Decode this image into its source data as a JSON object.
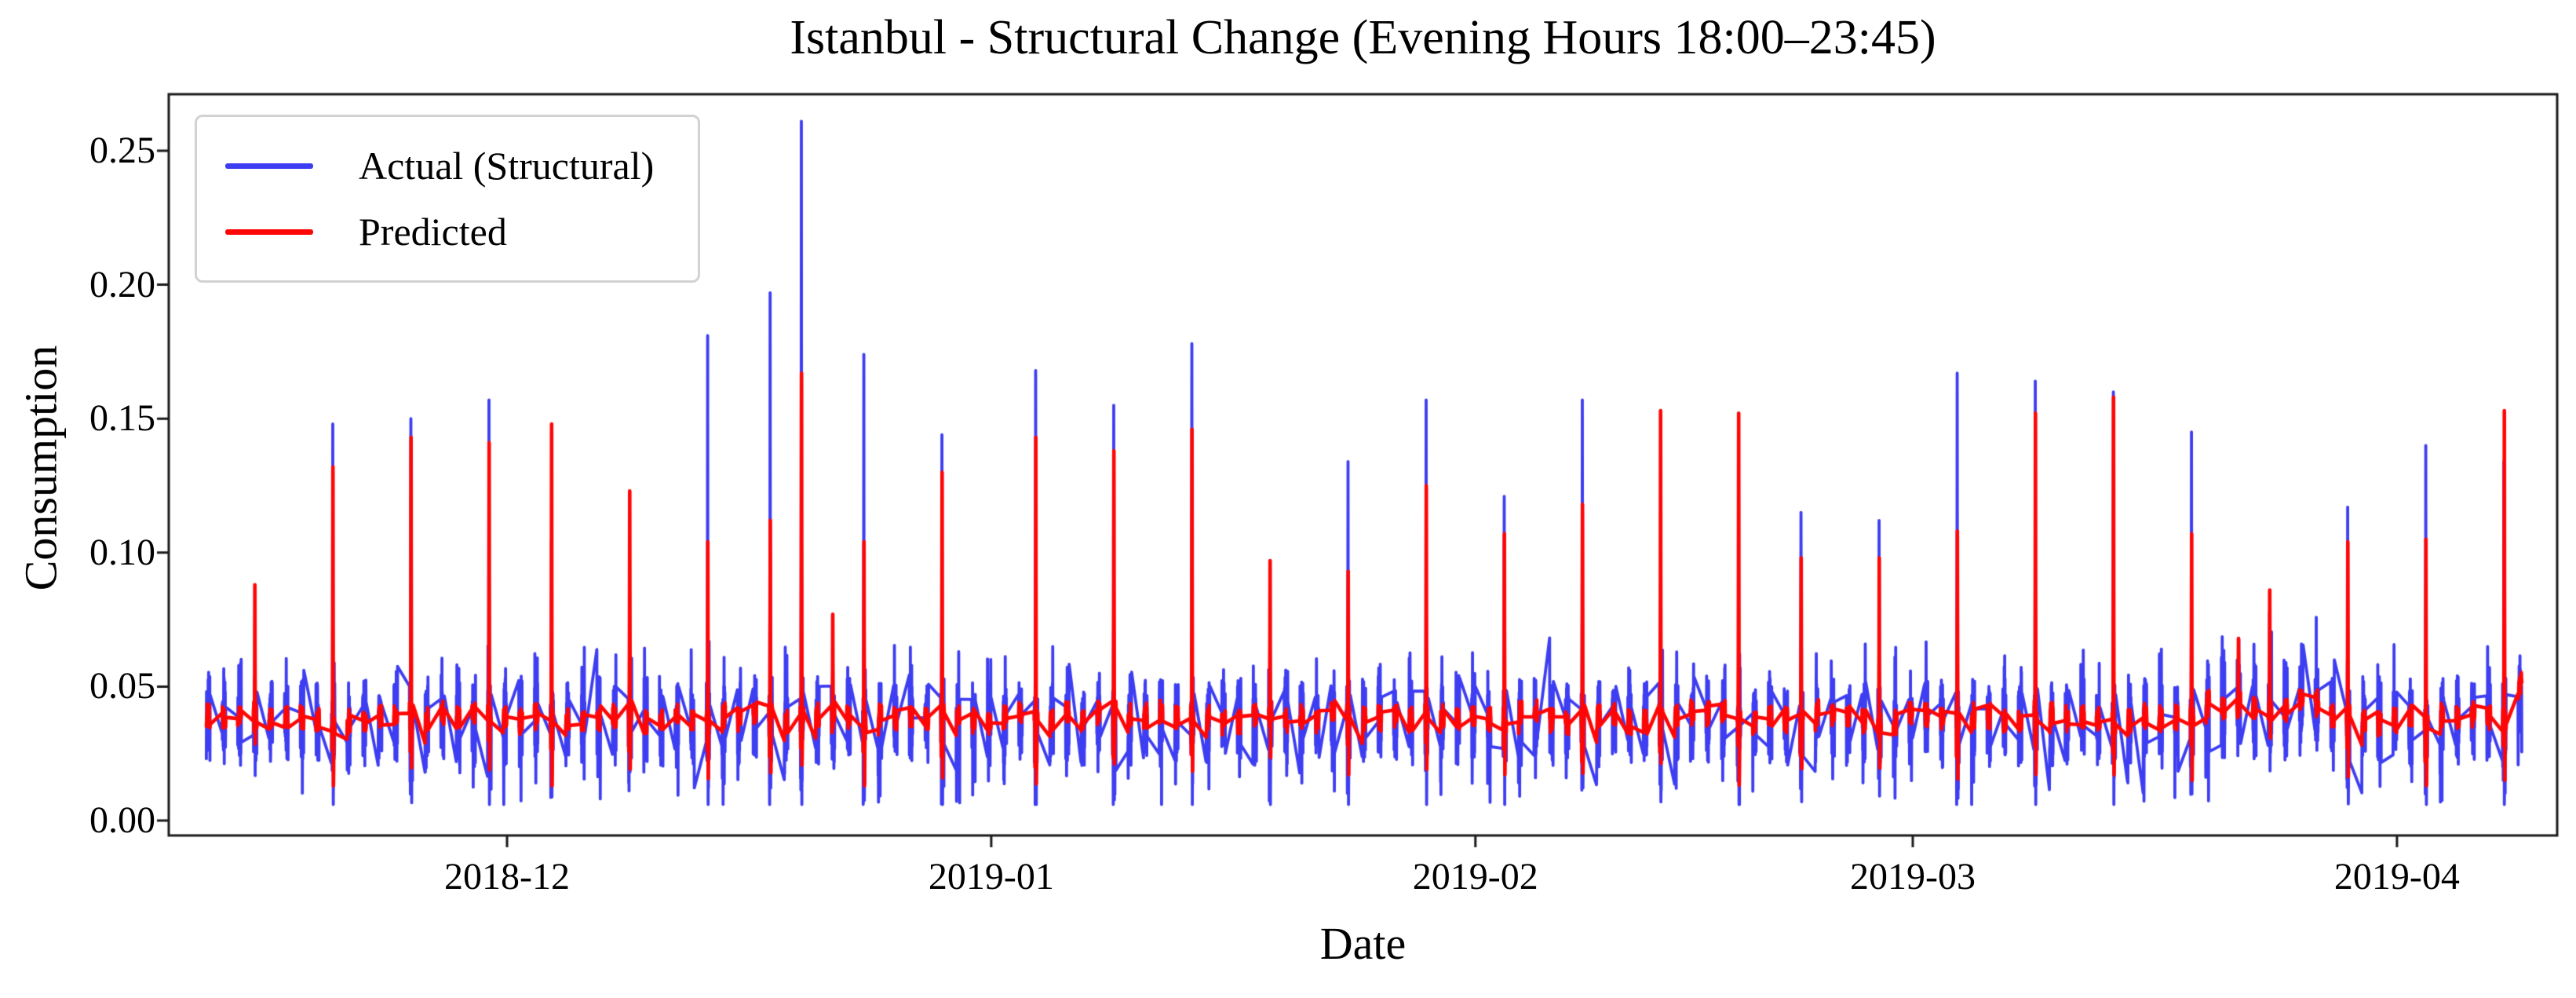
{
  "figure": {
    "title": "Istanbul - Structural Change (Evening Hours 18:00–23:45)",
    "xlabel": "Date",
    "ylabel": "Consumption",
    "background_color": "#ffffff",
    "spine_color": "#1a1a1a",
    "text_color": "#000000"
  },
  "legend": {
    "position": "upper left",
    "border_color": "#d2d2d2",
    "items": [
      {
        "label": "Actual (Structural)",
        "color": "#3d3df2"
      },
      {
        "label": "Predicted",
        "color": "#ff0606"
      }
    ]
  },
  "axes": {
    "y_tick_labels": [
      "0.00",
      "0.05",
      "0.10",
      "0.15",
      "0.20",
      "0.25"
    ],
    "y_tick_values": [
      0.0,
      0.05,
      0.1,
      0.15,
      0.2,
      0.25
    ],
    "x_tick_labels": [
      "2018-12",
      "2019-01",
      "2019-02",
      "2019-03",
      "2019-04"
    ],
    "x_tick_day_offsets_from_dec1": [
      0,
      31,
      62,
      90,
      121
    ],
    "ylim": [
      -0.006,
      0.271
    ],
    "xlim_days_from_dec1": [
      -21.7,
      131.3
    ],
    "grid": false
  },
  "chart_data": {
    "type": "line",
    "title": "Istanbul - Structural Change (Evening Hours 18:00–23:45)",
    "xlabel": "Date",
    "ylabel": "Consumption",
    "x_range": [
      "2018-11-11",
      "2019-04-08"
    ],
    "ylim": [
      -0.006,
      0.271
    ],
    "legend_position": "upper left",
    "series": [
      {
        "name": "Actual (Structural)",
        "color": "#3d3df2",
        "line_width": 3.8,
        "character": "noisy 15-min evening consumption, band 0.02–0.065 with sharp holiday/event spikes and post-spike dips to ~0.01"
      },
      {
        "name": "Predicted",
        "color": "#ff0606",
        "line_width": 4.6,
        "character": "smooth forecast near 0.039 baseline, reproduces spikes at lower or higher amplitude"
      }
    ],
    "sampling": {
      "window": "18:00–23:45",
      "interval_minutes": 15,
      "points_per_day": 24,
      "start_date": "2018-11-11",
      "num_days": 149
    },
    "baseline": {
      "actual_mean": 0.037,
      "actual_band": [
        0.018,
        0.065
      ],
      "predicted_mean": 0.0385,
      "post_spike_dip_actual": 0.01,
      "post_spike_dip_predicted": 0.02
    },
    "spike_events": [
      {
        "date": "2018-11-14",
        "actual": 0.052,
        "predicted": 0.088
      },
      {
        "date": "2018-11-19",
        "actual": 0.148,
        "predicted": 0.132
      },
      {
        "date": "2018-11-24",
        "actual": 0.15,
        "predicted": 0.143
      },
      {
        "date": "2018-11-29",
        "actual": 0.157,
        "predicted": 0.141
      },
      {
        "date": "2018-12-03",
        "actual": 0.105,
        "predicted": 0.148
      },
      {
        "date": "2018-12-08",
        "actual": 0.062,
        "predicted": 0.123
      },
      {
        "date": "2018-12-13",
        "actual": 0.181,
        "predicted": 0.104
      },
      {
        "date": "2018-12-17",
        "actual": 0.197,
        "predicted": 0.112
      },
      {
        "date": "2018-12-19",
        "actual": 0.261,
        "predicted": 0.167
      },
      {
        "date": "2018-12-21",
        "actual": 0.055,
        "predicted": 0.077
      },
      {
        "date": "2018-12-23",
        "actual": 0.174,
        "predicted": 0.104
      },
      {
        "date": "2018-12-28",
        "actual": 0.144,
        "predicted": 0.13
      },
      {
        "date": "2019-01-03",
        "actual": 0.168,
        "predicted": 0.143
      },
      {
        "date": "2019-01-08",
        "actual": 0.155,
        "predicted": 0.138
      },
      {
        "date": "2019-01-13",
        "actual": 0.178,
        "predicted": 0.146
      },
      {
        "date": "2019-01-18",
        "actual": 0.086,
        "predicted": 0.097
      },
      {
        "date": "2019-01-23",
        "actual": 0.134,
        "predicted": 0.093
      },
      {
        "date": "2019-01-28",
        "actual": 0.157,
        "predicted": 0.125
      },
      {
        "date": "2019-02-02",
        "actual": 0.121,
        "predicted": 0.107
      },
      {
        "date": "2019-02-07",
        "actual": 0.157,
        "predicted": 0.118
      },
      {
        "date": "2019-02-12",
        "actual": 0.07,
        "predicted": 0.153
      },
      {
        "date": "2019-02-17",
        "actual": 0.065,
        "predicted": 0.152
      },
      {
        "date": "2019-02-21",
        "actual": 0.115,
        "predicted": 0.098
      },
      {
        "date": "2019-02-26",
        "actual": 0.112,
        "predicted": 0.098
      },
      {
        "date": "2019-03-03",
        "actual": 0.167,
        "predicted": 0.108
      },
      {
        "date": "2019-03-08",
        "actual": 0.164,
        "predicted": 0.152
      },
      {
        "date": "2019-03-13",
        "actual": 0.16,
        "predicted": 0.158
      },
      {
        "date": "2019-03-18",
        "actual": 0.145,
        "predicted": 0.107
      },
      {
        "date": "2019-03-21",
        "actual": 0.06,
        "predicted": 0.068
      },
      {
        "date": "2019-03-23",
        "actual": 0.078,
        "predicted": 0.086
      },
      {
        "date": "2019-03-28",
        "actual": 0.117,
        "predicted": 0.104
      },
      {
        "date": "2019-04-02",
        "actual": 0.14,
        "predicted": 0.105
      },
      {
        "date": "2019-04-07",
        "actual": 0.134,
        "predicted": 0.153,
        "red_late": true
      }
    ],
    "noisy_period": {
      "start": "2019-03-19",
      "end": "2019-03-26",
      "actual_boost": 0.005,
      "predicted_boost": 0.004
    },
    "generation": {
      "seed": 1337,
      "actual_base": 0.037,
      "actual_osc_amp": 0.011,
      "actual_noise": 0.013,
      "predicted_base": 0.0385,
      "predicted_noise": 0.005,
      "spike_center_index": 9
    }
  }
}
